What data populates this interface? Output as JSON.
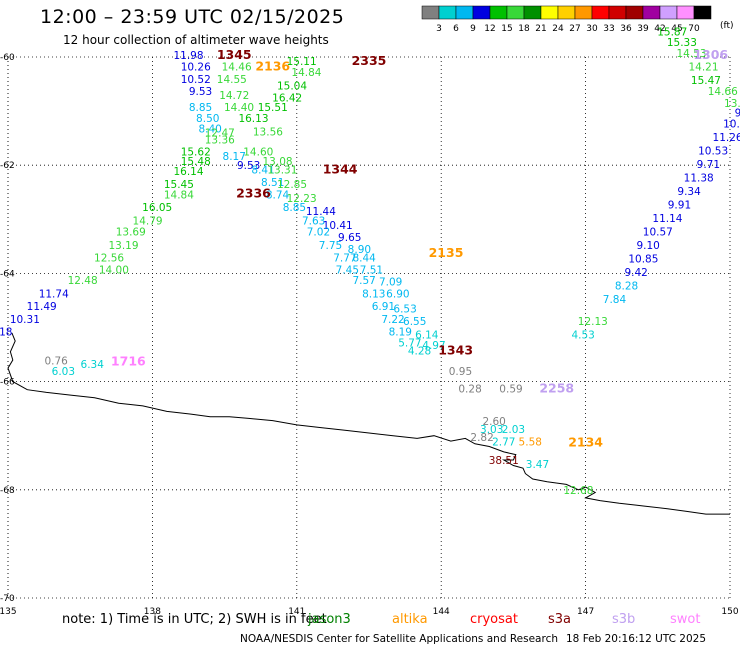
{
  "title": "12:00 – 23:59 UTC 02/15/2025",
  "subtitle": "12 hour collection of altimeter wave heights",
  "note": "note: 1) Time is in UTC; 2) SWH is in feet",
  "credit": "NOAA/NESDIS Center for Satellite Applications and Research",
  "timestamp": "18 Feb 20:16:12 UTC 2025",
  "color_scale": {
    "unit": "(ft)",
    "ticks": [
      "3",
      "6",
      "9",
      "12",
      "15",
      "18",
      "21",
      "24",
      "27",
      "30",
      "33",
      "36",
      "39",
      "42",
      "45",
      "70"
    ],
    "colors": [
      "#808080",
      "#00d0d0",
      "#00b8f0",
      "#0000e0",
      "#00c000",
      "#38d838",
      "#009000",
      "#ffff00",
      "#ffd000",
      "#ff9800",
      "#ff0000",
      "#d00000",
      "#a00000",
      "#a000a0",
      "#d0a0ff",
      "#ff90ff",
      "#000000"
    ]
  },
  "satellites": [
    {
      "name": "jason3",
      "color": "#008000"
    },
    {
      "name": "altika",
      "color": "#ff9900"
    },
    {
      "name": "cryosat",
      "color": "#ff0000"
    },
    {
      "name": "s3a",
      "color": "#800000"
    },
    {
      "name": "s3b",
      "color": "#c0a0f0"
    },
    {
      "name": "swot",
      "color": "#ff80ff"
    }
  ],
  "chart_data": {
    "type": "map",
    "lon_range": [
      135,
      150
    ],
    "lat_range": [
      -70,
      -60
    ],
    "lon_ticks": [
      "135",
      "138",
      "141",
      "144",
      "147",
      "150"
    ],
    "lat_ticks": [
      "-60",
      "-62",
      "-64",
      "-66",
      "-68",
      "-70"
    ],
    "grid": "dotted",
    "track_labels": [
      {
        "text": "1345",
        "lon": 139.7,
        "lat": -60.04,
        "color": "#800000"
      },
      {
        "text": "2136",
        "lon": 140.5,
        "lat": -60.25,
        "color": "#ff9900"
      },
      {
        "text": "2335",
        "lon": 142.5,
        "lat": -60.15,
        "color": "#800000"
      },
      {
        "text": "1344",
        "lon": 141.9,
        "lat": -62.15,
        "color": "#800000"
      },
      {
        "text": "2336",
        "lon": 140.1,
        "lat": -62.6,
        "color": "#800000"
      },
      {
        "text": "2135",
        "lon": 144.1,
        "lat": -63.7,
        "color": "#ff9900"
      },
      {
        "text": "1343",
        "lon": 144.3,
        "lat": -65.5,
        "color": "#800000"
      },
      {
        "text": "1716",
        "lon": 137.5,
        "lat": -65.7,
        "color": "#ff80ff"
      },
      {
        "text": "2258",
        "lon": 146.4,
        "lat": -66.2,
        "color": "#c0a0f0"
      },
      {
        "text": "2134",
        "lon": 147.0,
        "lat": -67.2,
        "color": "#ff9900"
      },
      {
        "text": "1306",
        "lon": 149.6,
        "lat": -60.04,
        "color": "#c0a0f0"
      }
    ],
    "points": [
      {
        "v": "11.98",
        "lon": 138.75,
        "lat": -60.04,
        "c": "#0000e0"
      },
      {
        "v": "10.26",
        "lon": 138.9,
        "lat": -60.25,
        "c": "#0000e0"
      },
      {
        "v": "14.46",
        "lon": 139.75,
        "lat": -60.25,
        "c": "#38d838"
      },
      {
        "v": "15.11",
        "lon": 141.1,
        "lat": -60.15,
        "c": "#00c000"
      },
      {
        "v": "14.84",
        "lon": 141.2,
        "lat": -60.35,
        "c": "#38d838"
      },
      {
        "v": "10.52",
        "lon": 138.9,
        "lat": -60.48,
        "c": "#0000e0"
      },
      {
        "v": "14.55",
        "lon": 139.65,
        "lat": -60.48,
        "c": "#38d838"
      },
      {
        "v": "15.04",
        "lon": 140.9,
        "lat": -60.6,
        "c": "#00c000"
      },
      {
        "v": "9.53",
        "lon": 139.0,
        "lat": -60.7,
        "c": "#0000e0"
      },
      {
        "v": "14.72",
        "lon": 139.7,
        "lat": -60.78,
        "c": "#38d838"
      },
      {
        "v": "16.42",
        "lon": 140.8,
        "lat": -60.82,
        "c": "#00c000"
      },
      {
        "v": "8.85",
        "lon": 139.0,
        "lat": -61.0,
        "c": "#00b8f0"
      },
      {
        "v": "14.40",
        "lon": 139.8,
        "lat": -61.0,
        "c": "#38d838"
      },
      {
        "v": "15.51",
        "lon": 140.5,
        "lat": -61.0,
        "c": "#00c000"
      },
      {
        "v": "8.50",
        "lon": 139.15,
        "lat": -61.2,
        "c": "#00b8f0"
      },
      {
        "v": "16.13",
        "lon": 140.1,
        "lat": -61.2,
        "c": "#00c000"
      },
      {
        "v": "8.40",
        "lon": 139.2,
        "lat": -61.4,
        "c": "#00b8f0"
      },
      {
        "v": "12.47",
        "lon": 139.4,
        "lat": -61.47,
        "c": "#38d838"
      },
      {
        "v": "13.56",
        "lon": 140.4,
        "lat": -61.45,
        "c": "#38d838"
      },
      {
        "v": "13.36",
        "lon": 139.4,
        "lat": -61.6,
        "c": "#38d838"
      },
      {
        "v": "15.62",
        "lon": 138.9,
        "lat": -61.82,
        "c": "#00c000"
      },
      {
        "v": "14.60",
        "lon": 140.2,
        "lat": -61.82,
        "c": "#38d838"
      },
      {
        "v": "8.17",
        "lon": 139.7,
        "lat": -61.9,
        "c": "#00b8f0"
      },
      {
        "v": "15.48",
        "lon": 138.9,
        "lat": -62.0,
        "c": "#00c000"
      },
      {
        "v": "9.53",
        "lon": 140.0,
        "lat": -62.07,
        "c": "#0000e0"
      },
      {
        "v": "13.08",
        "lon": 140.6,
        "lat": -62.0,
        "c": "#38d838"
      },
      {
        "v": "16.14",
        "lon": 138.75,
        "lat": -62.18,
        "c": "#00c000"
      },
      {
        "v": "8.41",
        "lon": 140.3,
        "lat": -62.15,
        "c": "#00b8f0"
      },
      {
        "v": "13.31",
        "lon": 140.7,
        "lat": -62.15,
        "c": "#38d838"
      },
      {
        "v": "15.45",
        "lon": 138.55,
        "lat": -62.42,
        "c": "#00c000"
      },
      {
        "v": "8.51",
        "lon": 140.5,
        "lat": -62.38,
        "c": "#00b8f0"
      },
      {
        "v": "12.85",
        "lon": 140.9,
        "lat": -62.42,
        "c": "#38d838"
      },
      {
        "v": "14.84",
        "lon": 138.55,
        "lat": -62.62,
        "c": "#38d838"
      },
      {
        "v": "8.74",
        "lon": 140.6,
        "lat": -62.62,
        "c": "#00b8f0"
      },
      {
        "v": "12.23",
        "lon": 141.1,
        "lat": -62.68,
        "c": "#38d838"
      },
      {
        "v": "16.05",
        "lon": 138.1,
        "lat": -62.85,
        "c": "#00c000"
      },
      {
        "v": "8.85",
        "lon": 140.95,
        "lat": -62.85,
        "c": "#00b8f0"
      },
      {
        "v": "11.44",
        "lon": 141.5,
        "lat": -62.92,
        "c": "#0000e0"
      },
      {
        "v": "14.79",
        "lon": 137.9,
        "lat": -63.1,
        "c": "#38d838"
      },
      {
        "v": "7.63",
        "lon": 141.35,
        "lat": -63.1,
        "c": "#00b8f0"
      },
      {
        "v": "10.41",
        "lon": 141.85,
        "lat": -63.18,
        "c": "#0000e0"
      },
      {
        "v": "13.69",
        "lon": 137.55,
        "lat": -63.3,
        "c": "#38d838"
      },
      {
        "v": "7.02",
        "lon": 141.45,
        "lat": -63.3,
        "c": "#00b8f0"
      },
      {
        "v": "9.65",
        "lon": 142.1,
        "lat": -63.4,
        "c": "#0000e0"
      },
      {
        "v": "13.19",
        "lon": 137.4,
        "lat": -63.55,
        "c": "#38d838"
      },
      {
        "v": "7.75",
        "lon": 141.7,
        "lat": -63.55,
        "c": "#00b8f0"
      },
      {
        "v": "8.90",
        "lon": 142.3,
        "lat": -63.62,
        "c": "#00b8f0"
      },
      {
        "v": "12.56",
        "lon": 137.1,
        "lat": -63.78,
        "c": "#38d838"
      },
      {
        "v": "7.77",
        "lon": 142.0,
        "lat": -63.78,
        "c": "#00b8f0"
      },
      {
        "v": "8.44",
        "lon": 142.4,
        "lat": -63.78,
        "c": "#00b8f0"
      },
      {
        "v": "14.00",
        "lon": 137.2,
        "lat": -64.0,
        "c": "#38d838"
      },
      {
        "v": "7.45",
        "lon": 142.05,
        "lat": -64.0,
        "c": "#00b8f0"
      },
      {
        "v": "7.51",
        "lon": 142.55,
        "lat": -64.0,
        "c": "#00b8f0"
      },
      {
        "v": "12.48",
        "lon": 136.55,
        "lat": -64.2,
        "c": "#38d838"
      },
      {
        "v": "7.57",
        "lon": 142.4,
        "lat": -64.2,
        "c": "#00b8f0"
      },
      {
        "v": "7.09",
        "lon": 142.95,
        "lat": -64.22,
        "c": "#00b8f0"
      },
      {
        "v": "11.74",
        "lon": 135.95,
        "lat": -64.45,
        "c": "#0000e0"
      },
      {
        "v": "8.13",
        "lon": 142.6,
        "lat": -64.45,
        "c": "#00b8f0"
      },
      {
        "v": "6.90",
        "lon": 143.1,
        "lat": -64.45,
        "c": "#00b8f0"
      },
      {
        "v": "11.49",
        "lon": 135.7,
        "lat": -64.68,
        "c": "#0000e0"
      },
      {
        "v": "6.91",
        "lon": 142.8,
        "lat": -64.68,
        "c": "#00b8f0"
      },
      {
        "v": "6.53",
        "lon": 143.25,
        "lat": -64.72,
        "c": "#00b8f0"
      },
      {
        "v": "10.31",
        "lon": 135.35,
        "lat": -64.92,
        "c": "#0000e0"
      },
      {
        "v": "7.22",
        "lon": 143.0,
        "lat": -64.92,
        "c": "#00b8f0"
      },
      {
        "v": "6.55",
        "lon": 143.45,
        "lat": -64.95,
        "c": "#00b8f0"
      },
      {
        "v": "9.18",
        "lon": 134.85,
        "lat": -65.15,
        "c": "#0000e0"
      },
      {
        "v": "8.19",
        "lon": 143.15,
        "lat": -65.15,
        "c": "#00b8f0"
      },
      {
        "v": "6.14",
        "lon": 143.7,
        "lat": -65.2,
        "c": "#00d0d0"
      },
      {
        "v": "5.77",
        "lon": 143.35,
        "lat": -65.35,
        "c": "#00d0d0"
      },
      {
        "v": "4.97",
        "lon": 143.85,
        "lat": -65.4,
        "c": "#00d0d0"
      },
      {
        "v": "4.28",
        "lon": 143.55,
        "lat": -65.5,
        "c": "#00d0d0"
      },
      {
        "v": "0.76",
        "lon": 136.0,
        "lat": -65.68,
        "c": "#808080"
      },
      {
        "v": "6.34",
        "lon": 136.75,
        "lat": -65.75,
        "c": "#00d0d0"
      },
      {
        "v": "6.03",
        "lon": 136.15,
        "lat": -65.88,
        "c": "#00d0d0"
      },
      {
        "v": "0.95",
        "lon": 144.4,
        "lat": -65.88,
        "c": "#808080"
      },
      {
        "v": "0.28",
        "lon": 144.6,
        "lat": -66.2,
        "c": "#808080"
      },
      {
        "v": "0.59",
        "lon": 145.45,
        "lat": -66.2,
        "c": "#808080"
      },
      {
        "v": "2.60",
        "lon": 145.1,
        "lat": -66.8,
        "c": "#808080"
      },
      {
        "v": "3.03",
        "lon": 145.05,
        "lat": -66.95,
        "c": "#00d0d0"
      },
      {
        "v": "2.03",
        "lon": 145.5,
        "lat": -66.95,
        "c": "#00d0d0"
      },
      {
        "v": "2.82",
        "lon": 144.85,
        "lat": -67.1,
        "c": "#808080"
      },
      {
        "v": "2.77",
        "lon": 145.3,
        "lat": -67.18,
        "c": "#00d0d0"
      },
      {
        "v": "5.58",
        "lon": 145.85,
        "lat": -67.18,
        "c": "#ff9900"
      },
      {
        "v": "38.51",
        "lon": 145.3,
        "lat": -67.52,
        "c": "#800000"
      },
      {
        "v": "3.47",
        "lon": 146.0,
        "lat": -67.6,
        "c": "#00d0d0"
      },
      {
        "v": "12.68",
        "lon": 146.85,
        "lat": -68.08,
        "c": "#38d838"
      },
      {
        "v": "12.13",
        "lon": 147.15,
        "lat": -64.95,
        "c": "#38d838"
      },
      {
        "v": "4.53",
        "lon": 146.95,
        "lat": -65.2,
        "c": "#00d0d0"
      },
      {
        "v": "7.84",
        "lon": 147.6,
        "lat": -64.55,
        "c": "#00b8f0"
      },
      {
        "v": "8.28",
        "lon": 147.85,
        "lat": -64.3,
        "c": "#00b8f0"
      },
      {
        "v": "9.42",
        "lon": 148.05,
        "lat": -64.05,
        "c": "#0000e0"
      },
      {
        "v": "10.85",
        "lon": 148.2,
        "lat": -63.8,
        "c": "#0000e0"
      },
      {
        "v": "9.10",
        "lon": 148.3,
        "lat": -63.55,
        "c": "#0000e0"
      },
      {
        "v": "10.57",
        "lon": 148.5,
        "lat": -63.3,
        "c": "#0000e0"
      },
      {
        "v": "11.14",
        "lon": 148.7,
        "lat": -63.05,
        "c": "#0000e0"
      },
      {
        "v": "9.91",
        "lon": 148.95,
        "lat": -62.8,
        "c": "#0000e0"
      },
      {
        "v": "9.34",
        "lon": 149.15,
        "lat": -62.55,
        "c": "#0000e0"
      },
      {
        "v": "11.38",
        "lon": 149.35,
        "lat": -62.3,
        "c": "#0000e0"
      },
      {
        "v": "9.71",
        "lon": 149.55,
        "lat": -62.05,
        "c": "#0000e0"
      },
      {
        "v": "10.53",
        "lon": 149.65,
        "lat": -61.8,
        "c": "#0000e0"
      },
      {
        "v": "11.26",
        "lon": 149.95,
        "lat": -61.55,
        "c": "#0000e0"
      },
      {
        "v": "10.5",
        "lon": 150.1,
        "lat": -61.3,
        "c": "#0000e0"
      },
      {
        "v": "9.",
        "lon": 150.2,
        "lat": -61.1,
        "c": "#0000e0"
      },
      {
        "v": "13.",
        "lon": 150.05,
        "lat": -60.92,
        "c": "#38d838"
      },
      {
        "v": "14.66",
        "lon": 149.85,
        "lat": -60.7,
        "c": "#38d838"
      },
      {
        "v": "15.47",
        "lon": 149.5,
        "lat": -60.5,
        "c": "#00c000"
      },
      {
        "v": "14.21",
        "lon": 149.45,
        "lat": -60.25,
        "c": "#38d838"
      },
      {
        "v": "14.53",
        "lon": 149.2,
        "lat": -60.0,
        "c": "#38d838"
      },
      {
        "v": "15.33",
        "lon": 149.0,
        "lat": -59.8,
        "c": "#00c000"
      },
      {
        "v": "15.87",
        "lon": 148.8,
        "lat": -59.6,
        "c": "#00c000"
      }
    ]
  }
}
